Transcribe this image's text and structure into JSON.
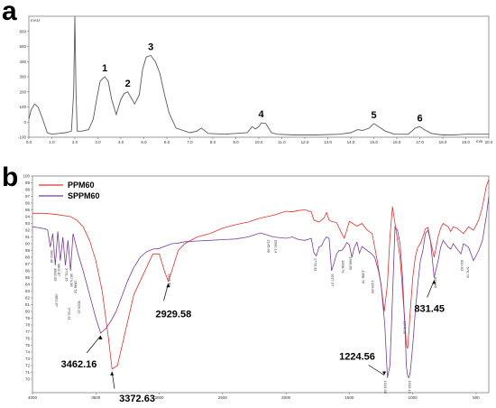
{
  "panels": {
    "a": "a",
    "b": "b"
  },
  "chart_data": [
    {
      "type": "line",
      "panel": "a",
      "title": "",
      "ylabel": "mAU",
      "xlabel": "min",
      "xlim": [
        0,
        20
      ],
      "ylim": [
        -100,
        700
      ],
      "xticks": [
        "0.0",
        "1.0",
        "2.0",
        "3.0",
        "4.0",
        "5.0",
        "6.0",
        "7.0",
        "8.0",
        "9.0",
        "10.0",
        "11.0",
        "12.0",
        "13.0",
        "14.0",
        "15.0",
        "16.0",
        "17.0",
        "18.0",
        "19.0",
        "20.0"
      ],
      "yticks": [
        "-100",
        "0",
        "100",
        "200",
        "300",
        "400",
        "500",
        "600"
      ],
      "series": [
        {
          "color": "#5a5a5a",
          "x": [
            0,
            0.1,
            0.25,
            0.4,
            0.6,
            0.8,
            1.0,
            1.3,
            1.6,
            1.85,
            1.95,
            2.0,
            2.05,
            2.1,
            2.3,
            2.6,
            2.8,
            2.95,
            3.1,
            3.3,
            3.45,
            3.6,
            3.8,
            4.0,
            4.15,
            4.3,
            4.45,
            4.6,
            4.8,
            4.95,
            5.1,
            5.3,
            5.5,
            5.7,
            5.9,
            6.1,
            6.4,
            7.0,
            7.3,
            7.5,
            7.8,
            8.5,
            9.0,
            9.5,
            9.7,
            9.85,
            10.0,
            10.1,
            10.3,
            10.55,
            10.8,
            11.5,
            12.5,
            13.5,
            14.0,
            14.3,
            14.5,
            14.8,
            15.0,
            15.3,
            15.5,
            15.9,
            16.5,
            16.8,
            16.9,
            17.0,
            17.2,
            17.5,
            18.0,
            18.5,
            19.0,
            20.0
          ],
          "y": [
            20,
            80,
            120,
            100,
            20,
            -70,
            -80,
            -75,
            -70,
            -60,
            200,
            700,
            200,
            -60,
            -60,
            -50,
            20,
            150,
            270,
            300,
            270,
            150,
            50,
            150,
            190,
            200,
            160,
            120,
            180,
            350,
            430,
            440,
            400,
            320,
            180,
            60,
            -40,
            -70,
            -60,
            -40,
            -75,
            -80,
            -75,
            -70,
            -30,
            -45,
            -30,
            -5,
            -10,
            -70,
            -80,
            -85,
            -85,
            -80,
            -70,
            -50,
            -55,
            -40,
            -10,
            -40,
            -60,
            -80,
            -80,
            -40,
            -35,
            -30,
            -50,
            -75,
            -85,
            -85,
            -80,
            -80
          ]
        }
      ],
      "peak_labels": [
        {
          "text": "1",
          "x": 3.3,
          "y": 300
        },
        {
          "text": "2",
          "x": 4.3,
          "y": 200
        },
        {
          "text": "3",
          "x": 5.3,
          "y": 440
        },
        {
          "text": "4",
          "x": 10.1,
          "y": -5
        },
        {
          "text": "5",
          "x": 15.0,
          "y": -10
        },
        {
          "text": "6",
          "x": 17.0,
          "y": -30
        }
      ]
    },
    {
      "type": "line",
      "panel": "b",
      "title": "",
      "xlabel": "",
      "ylabel": "",
      "xlim": [
        4000,
        400
      ],
      "ylim": [
        68,
        100
      ],
      "xticks": [
        "4000",
        "3500",
        "3000",
        "2500",
        "2000",
        "1500",
        "1000",
        "500"
      ],
      "yticks": [
        "70",
        "71",
        "72",
        "73",
        "74",
        "75",
        "76",
        "77",
        "78",
        "79",
        "80",
        "81",
        "82",
        "83",
        "84",
        "85",
        "86",
        "87",
        "88",
        "89",
        "90",
        "91",
        "92",
        "93",
        "94",
        "95",
        "96",
        "97",
        "98",
        "99",
        "100"
      ],
      "legend": {
        "placement": "top-left",
        "entries": [
          {
            "name": "PPM60",
            "color": "#e8312e"
          },
          {
            "name": "SPPM60",
            "color": "#7a3c98"
          }
        ]
      },
      "series": [
        {
          "name": "PPM60",
          "color": "#e8312e",
          "x": [
            4000,
            3900,
            3800,
            3700,
            3650,
            3600,
            3550,
            3500,
            3450,
            3400,
            3372.63,
            3330,
            3280,
            3200,
            3100,
            3050,
            3000,
            2960,
            2929.58,
            2900,
            2850,
            2800,
            2700,
            2600,
            2500,
            2400,
            2300,
            2200,
            2100,
            2000,
            1950,
            1900,
            1850,
            1800,
            1780,
            1740,
            1700,
            1680,
            1660,
            1640,
            1600,
            1560,
            1540,
            1500,
            1440,
            1400,
            1360,
            1320,
            1280,
            1250,
            1224.56,
            1200,
            1180,
            1160,
            1140,
            1100,
            1080,
            1060,
            1050,
            1040,
            1030,
            1020,
            1000,
            980,
            960,
            940,
            920,
            900,
            880,
            860,
            831.45,
            800,
            780,
            760,
            720,
            700,
            680,
            650,
            600,
            560,
            520,
            480,
            450,
            420,
            400
          ],
          "y": [
            94.5,
            94.5,
            94.3,
            94.0,
            93.5,
            92.5,
            90.5,
            87.5,
            83,
            76,
            71.5,
            72,
            76,
            82.5,
            86.5,
            88.5,
            88.5,
            86,
            84.5,
            86,
            89,
            90,
            91,
            91.5,
            92.3,
            92.8,
            93.2,
            93.8,
            94.2,
            94.8,
            94.7,
            94.9,
            95.0,
            94.7,
            93.5,
            93.2,
            93.8,
            94.6,
            93.5,
            93.3,
            93.1,
            91.5,
            90.8,
            93.3,
            92.6,
            93.0,
            92.0,
            91.5,
            87.5,
            84,
            80,
            84,
            91.0,
            95.5,
            93,
            88,
            83,
            78,
            75,
            74.5,
            77,
            80,
            85,
            88,
            89.5,
            90.0,
            91.0,
            92.2,
            92.4,
            90.5,
            88.0,
            91.0,
            92.3,
            93.0,
            92.5,
            91.8,
            92.5,
            92.3,
            91.5,
            92.5,
            92.0,
            93.5,
            95.5,
            98.5,
            99.5
          ]
        },
        {
          "name": "SPPM60",
          "color": "#7a3c98",
          "x": [
            4000,
            3960,
            3930,
            3900,
            3880,
            3860,
            3840,
            3820,
            3800,
            3780,
            3760,
            3740,
            3720,
            3700,
            3680,
            3660,
            3640,
            3600,
            3550,
            3500,
            3462.16,
            3420,
            3380,
            3340,
            3300,
            3250,
            3200,
            3150,
            3100,
            3050,
            3000,
            2960,
            2929.58,
            2900,
            2850,
            2800,
            2700,
            2600,
            2500,
            2400,
            2300,
            2200,
            2100,
            2000,
            1950,
            1900,
            1850,
            1800,
            1780,
            1760,
            1740,
            1720,
            1700,
            1680,
            1660,
            1640,
            1620,
            1600,
            1580,
            1560,
            1540,
            1520,
            1500,
            1480,
            1460,
            1440,
            1420,
            1400,
            1360,
            1330,
            1300,
            1270,
            1250,
            1220,
            1200,
            1180,
            1160,
            1140,
            1120,
            1100,
            1080,
            1060,
            1050,
            1040,
            1030,
            1020,
            1000,
            980,
            960,
            940,
            920,
            900,
            880,
            860,
            850,
            831.45,
            800,
            780,
            760,
            740,
            720,
            700,
            680,
            650,
            620,
            600,
            560,
            520,
            480,
            450,
            420,
            400
          ],
          "y": [
            92.5,
            92.4,
            92.3,
            92.2,
            92.0,
            89.5,
            91.5,
            86.8,
            91.8,
            87.5,
            91.0,
            86.8,
            90.5,
            86.0,
            91.5,
            90.0,
            88.5,
            86.0,
            82.5,
            79.0,
            76.8,
            77.5,
            78.6,
            80.0,
            82.0,
            84.5,
            86.5,
            88.0,
            88.8,
            89.2,
            89.3,
            89.6,
            89.8,
            90.0,
            90.1,
            90.3,
            90.4,
            90.5,
            90.6,
            90.7,
            91.0,
            91.6,
            91.0,
            90.8,
            91.0,
            90.6,
            90.5,
            90.8,
            88.7,
            88.2,
            89.5,
            89.7,
            90.5,
            91.0,
            90.8,
            86.0,
            87.2,
            88.5,
            89.0,
            89.0,
            89.5,
            90.2,
            89.8,
            88.0,
            89.5,
            90.2,
            88.6,
            89.6,
            89.0,
            88.6,
            88.0,
            86.0,
            84.0,
            78.0,
            70.2,
            72.0,
            82.0,
            92.5,
            92.0,
            90.0,
            85.0,
            77.0,
            72.0,
            70.5,
            70.2,
            71.0,
            75.0,
            80.0,
            84.0,
            87.5,
            89.0,
            91.5,
            92.0,
            90.5,
            88.5,
            85.0,
            87.5,
            89.5,
            90.5,
            90.0,
            89.5,
            89.2,
            90.0,
            89.2,
            88.5,
            90.0,
            89.5,
            87.5,
            89.0,
            90.5,
            94.0,
            97.0
          ]
        }
      ],
      "annotations": [
        {
          "text": "3462.16",
          "x": 3462.16,
          "y": 76.8
        },
        {
          "text": "3372.63",
          "x": 3372.63,
          "y": 71.5
        },
        {
          "text": "2929.58",
          "x": 2929.58,
          "y": 84.5
        },
        {
          "text": "1224.56",
          "x": 1224.56,
          "y": 70.2
        },
        {
          "text": "831.45",
          "x": 831.45,
          "y": 85.0
        }
      ],
      "vertical_peak_labels": [
        {
          "text": "3962.46",
          "x": 3860,
          "y": 89.5
        },
        {
          "text": "3853.55",
          "x": 3830,
          "y": 86.8
        },
        {
          "text": "3802.87",
          "x": 3800,
          "y": 87.5
        },
        {
          "text": "3751.15",
          "x": 3740,
          "y": 86.8
        },
        {
          "text": "3674.38",
          "x": 3700,
          "y": 86.0
        },
        {
          "text": "3648.53",
          "x": 3670,
          "y": 85.0
        },
        {
          "text": "3710.11",
          "x": 3720,
          "y": 81.0
        },
        {
          "text": "3629.12",
          "x": 3640,
          "y": 82.0
        },
        {
          "text": "3801.87",
          "x": 3820,
          "y": 83.0
        },
        {
          "text": "2926.58",
          "x": 2929.58,
          "y": 86.0
        },
        {
          "text": "1778.33",
          "x": 1778,
          "y": 88.3
        },
        {
          "text": "1627.07",
          "x": 1640,
          "y": 86.0
        },
        {
          "text": "1558.76",
          "x": 1558,
          "y": 88.0
        },
        {
          "text": "1499.86",
          "x": 1499,
          "y": 88.5
        },
        {
          "text": "1388.78",
          "x": 1400,
          "y": 86.5
        },
        {
          "text": "1326.83",
          "x": 1326,
          "y": 85.0
        },
        {
          "text": "1224.56",
          "x": 1224.56,
          "y": 70.2
        },
        {
          "text": "1032.12",
          "x": 1032,
          "y": 70.2
        },
        {
          "text": "1074.56",
          "x": 1074,
          "y": 79.0
        },
        {
          "text": "2145.49",
          "x": 2145,
          "y": 91.0
        },
        {
          "text": "2090.14",
          "x": 2090,
          "y": 91.0
        },
        {
          "text": "831.45",
          "x": 831.45,
          "y": 85.5
        },
        {
          "text": "620.52",
          "x": 620,
          "y": 88.0
        },
        {
          "text": "576.76",
          "x": 576,
          "y": 87.0
        }
      ]
    }
  ]
}
